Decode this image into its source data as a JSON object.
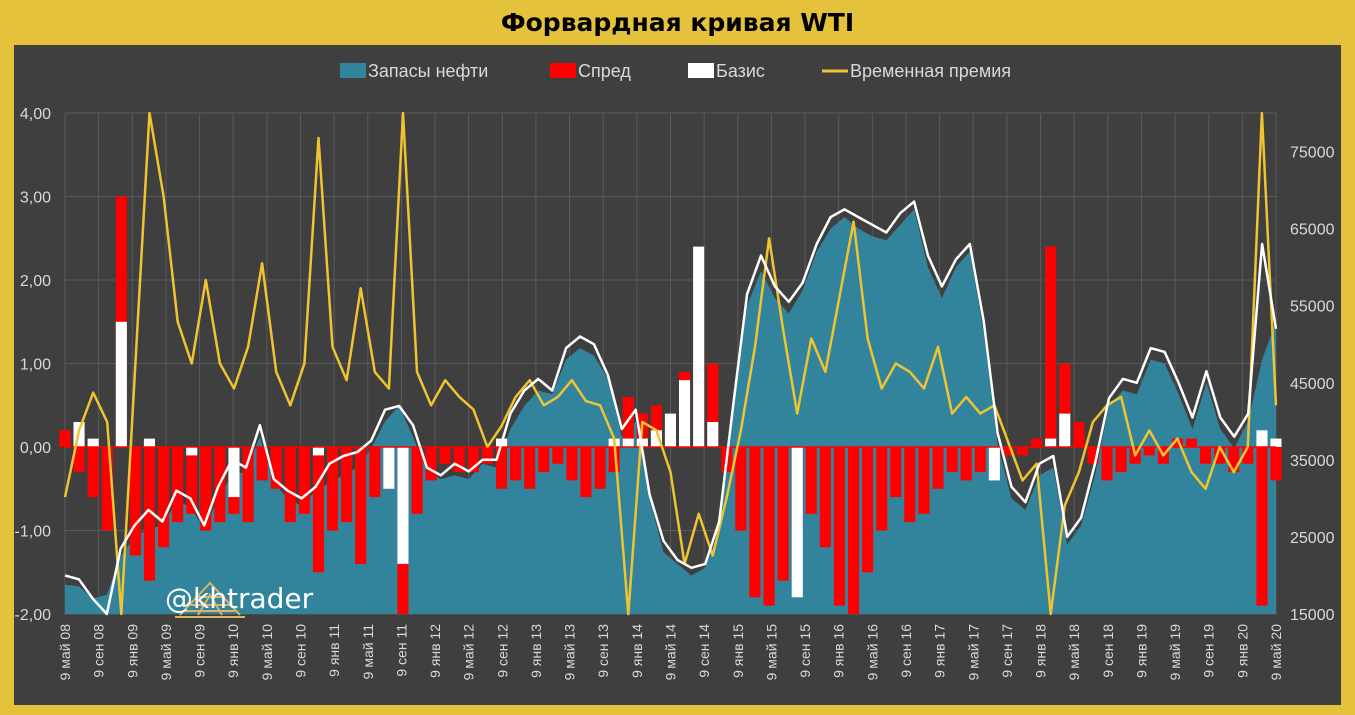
{
  "chart_data": {
    "type": "bar",
    "title": "Форвардная кривая WTI",
    "legend_position": "top",
    "grid": true,
    "y_left": {
      "min": -2.0,
      "max": 4.0,
      "ticks": [
        "4,00",
        "3,00",
        "2,00",
        "1,00",
        "0,00",
        "-1,00",
        "-2,00"
      ]
    },
    "y_right": {
      "min": 15000,
      "max": 80000,
      "ticks": [
        "75000",
        "65000",
        "55000",
        "45000",
        "35000",
        "25000",
        "15000"
      ]
    },
    "x_ticks": [
      "9 май 08",
      "9 сен 08",
      "9 янв 09",
      "9 май 09",
      "9 сен 09",
      "9 янв 10",
      "9 май 10",
      "9 сен 10",
      "9 янв 11",
      "9 май 11",
      "9 сен 11",
      "9 янв 12",
      "9 май 12",
      "9 сен 12",
      "9 янв 13",
      "9 май 13",
      "9 сен 13",
      "9 янв 14",
      "9 май 14",
      "9 сен 14",
      "9 янв 15",
      "9 май 15",
      "9 сен 15",
      "9 янв 16",
      "9 май 16",
      "9 сен 16",
      "9 янв 17",
      "9 май 17",
      "9 сен 17",
      "9 янв 18",
      "9 май 18",
      "9 сен 18",
      "9 янв 19",
      "9 май 19",
      "9 сен 19",
      "9 янв 20",
      "9 май 20"
    ],
    "series": [
      {
        "name": "Запасы нефти",
        "kind": "area",
        "axis": "right",
        "color": "#31849b",
        "values": [
          18800,
          18600,
          17000,
          17500,
          22500,
          25000,
          26000,
          26500,
          29500,
          29000,
          26000,
          30000,
          33000,
          33500,
          38000,
          32000,
          30000,
          29000,
          31000,
          32000,
          33000,
          34000,
          36500,
          40000,
          42000,
          38000,
          33500,
          32500,
          33000,
          32500,
          34500,
          34000,
          39000,
          42000,
          44000,
          43500,
          48000,
          49500,
          48500,
          45500,
          38000,
          40000,
          30000,
          23000,
          21500,
          20000,
          21000,
          26000,
          41000,
          55000,
          59500,
          56000,
          54000,
          57000,
          62000,
          65000,
          66500,
          65000,
          64000,
          63500,
          65500,
          67500,
          60000,
          56000,
          60000,
          62000,
          51500,
          37000,
          30000,
          28500,
          33000,
          34000,
          24000,
          26500,
          33000,
          42000,
          44000,
          43500,
          48000,
          47500,
          43500,
          39000,
          45000,
          39000,
          36500,
          40000,
          48000,
          53000
        ]
      },
      {
        "name": "Временная премия",
        "kind": "line",
        "axis": "left",
        "color": "#f0c431",
        "values": [
          -0.6,
          0.2,
          0.65,
          0.3,
          -2.0,
          1.0,
          4.0,
          3.0,
          1.5,
          1.0,
          2.0,
          1.0,
          0.7,
          1.2,
          2.2,
          0.9,
          0.5,
          1.0,
          3.7,
          1.2,
          0.8,
          1.9,
          0.9,
          0.7,
          4.0,
          0.9,
          0.5,
          0.8,
          0.6,
          0.45,
          0.0,
          0.25,
          0.6,
          0.8,
          0.5,
          0.6,
          0.8,
          0.55,
          0.5,
          0.1,
          -2.0,
          0.3,
          0.2,
          -0.3,
          -1.4,
          -0.8,
          -1.3,
          -0.6,
          0.2,
          1.2,
          2.5,
          1.4,
          0.4,
          1.3,
          0.9,
          1.8,
          2.7,
          1.3,
          0.7,
          1.0,
          0.9,
          0.7,
          1.2,
          0.4,
          0.6,
          0.4,
          0.5,
          0.05,
          -0.4,
          -0.2,
          -2.0,
          -0.7,
          -0.3,
          0.3,
          0.5,
          0.6,
          -0.1,
          0.2,
          -0.1,
          0.1,
          -0.3,
          -0.5,
          0.0,
          -0.3,
          0.0,
          4.0,
          0.5
        ]
      },
      {
        "name": "Базис",
        "kind": "line",
        "axis": "right",
        "color": "#ffffff",
        "values": [
          20000,
          19500,
          17000,
          15000,
          23500,
          26500,
          28500,
          27000,
          31000,
          30000,
          26500,
          31500,
          35000,
          34000,
          39500,
          32500,
          31000,
          30000,
          31500,
          34500,
          35500,
          36000,
          37500,
          41500,
          42000,
          39500,
          34000,
          33000,
          34500,
          33500,
          35000,
          35000,
          41000,
          44000,
          45500,
          44000,
          49500,
          51000,
          50000,
          46000,
          39000,
          41500,
          30500,
          24500,
          22000,
          21000,
          21500,
          27000,
          42000,
          56500,
          61500,
          57500,
          55500,
          58000,
          63000,
          66500,
          67500,
          66500,
          65500,
          64500,
          67000,
          68500,
          61500,
          57500,
          61000,
          63000,
          53000,
          38500,
          31500,
          29500,
          34500,
          35500,
          25000,
          27500,
          34500,
          43000,
          45500,
          45000,
          49500,
          49000,
          45000,
          40500,
          46500,
          40500,
          38000,
          41000,
          63000,
          52000
        ]
      },
      {
        "name": "Спред",
        "kind": "bar",
        "axis": "left",
        "color": "#ff0000",
        "values": [
          0.2,
          -0.3,
          -0.6,
          -1.0,
          3.0,
          -1.3,
          -1.6,
          -1.2,
          -0.9,
          -0.8,
          -1.0,
          -0.9,
          -0.8,
          -0.9,
          -0.4,
          -0.5,
          -0.9,
          -0.8,
          -1.5,
          -1.0,
          -0.9,
          -1.4,
          -0.6,
          -0.5,
          -2.0,
          -0.8,
          -0.4,
          -0.2,
          -0.3,
          -0.3,
          -0.2,
          -0.5,
          -0.4,
          -0.5,
          -0.3,
          -0.2,
          -0.4,
          -0.6,
          -0.5,
          -0.3,
          0.6,
          0.4,
          0.5,
          0.3,
          0.9,
          1.6,
          1.0,
          -0.3,
          -1.0,
          -1.8,
          -1.9,
          -1.6,
          -1.0,
          -0.8,
          -1.2,
          -1.9,
          -2.0,
          -1.5,
          -1.0,
          -0.6,
          -0.9,
          -0.8,
          -0.5,
          -0.3,
          -0.4,
          -0.3,
          -0.2,
          -0.1,
          -0.1,
          0.1,
          2.4,
          1.0,
          0.3,
          -0.2,
          -0.4,
          -0.3,
          -0.2,
          -0.1,
          -0.2,
          0.1,
          0.1,
          -0.2,
          -0.2,
          -0.3,
          -0.2,
          -1.9,
          -0.4
        ]
      },
      {
        "name": "Базис",
        "kind": "bar",
        "axis": "left",
        "color": "#ffffff",
        "values": [
          0.0,
          0.3,
          0.1,
          0.0,
          1.5,
          0.0,
          0.1,
          0.0,
          0.0,
          -0.1,
          0.0,
          0.0,
          -0.6,
          0.0,
          0.0,
          0.0,
          0.0,
          0.0,
          -0.1,
          0.0,
          0.0,
          0.0,
          0.0,
          -0.5,
          -1.4,
          0.0,
          0.0,
          0.0,
          0.0,
          0.0,
          0.0,
          0.1,
          0.0,
          0.0,
          0.0,
          0.0,
          0.0,
          0.0,
          0.0,
          0.1,
          0.1,
          0.1,
          0.2,
          0.4,
          0.8,
          2.4,
          0.3,
          0.0,
          0.0,
          0.0,
          0.0,
          0.0,
          -1.8,
          0.0,
          0.0,
          0.0,
          0.0,
          0.0,
          0.0,
          0.0,
          0.0,
          0.0,
          0.0,
          0.0,
          0.0,
          0.0,
          -0.4,
          0.0,
          0.0,
          0.0,
          0.1,
          0.4,
          0.0,
          0.0,
          0.0,
          0.0,
          0.0,
          0.0,
          0.0,
          0.0,
          0.0,
          0.0,
          0.0,
          0.0,
          0.0,
          0.2,
          0.1
        ]
      }
    ]
  },
  "watermark": {
    "text": "@khtrader",
    "logo_icon": "oil-derrick-logo"
  }
}
